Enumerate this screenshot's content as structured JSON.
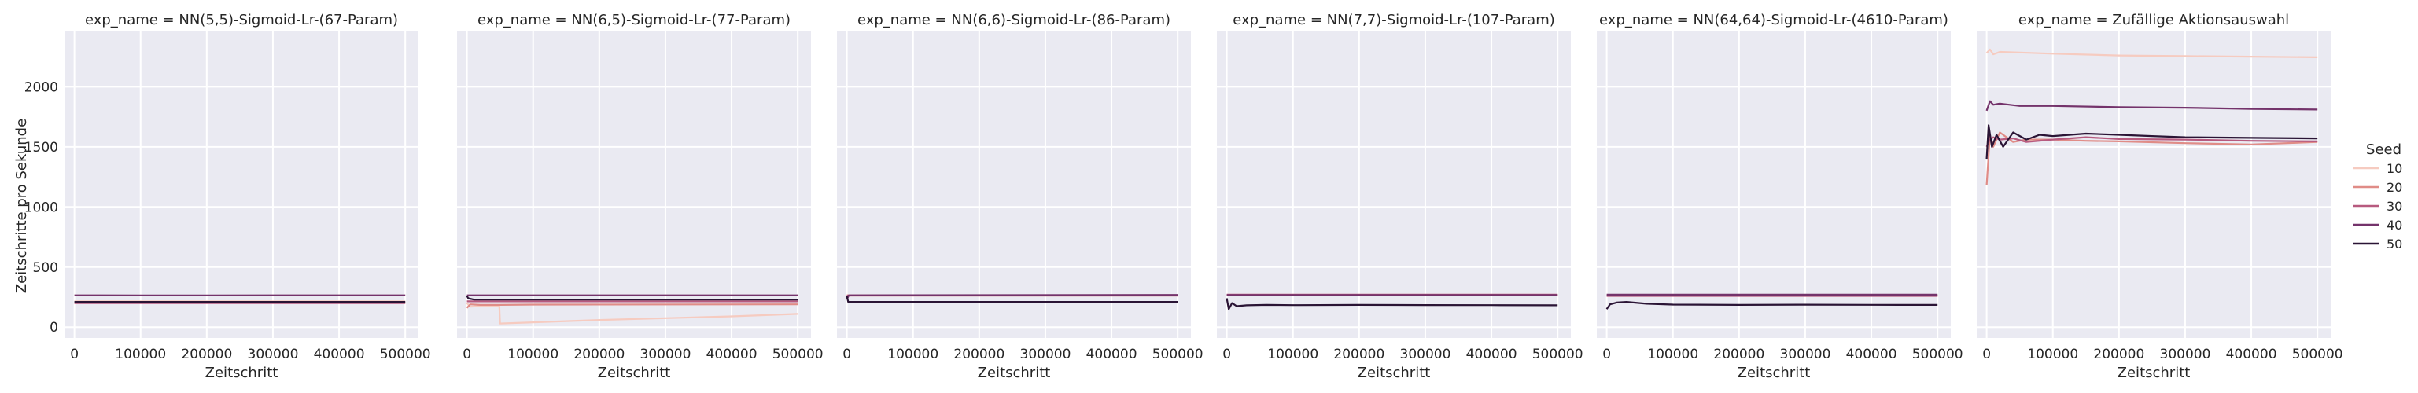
{
  "chart_data": {
    "type": "line",
    "ylabel": "Zeitschritte pro Sekunde",
    "xlabel": "Zeitschritt",
    "xlim": [
      -15000,
      520000
    ],
    "ylim": [
      -90,
      2460
    ],
    "xticks": [
      0,
      100000,
      200000,
      300000,
      400000,
      500000
    ],
    "yticks": [
      0,
      500,
      1000,
      1500,
      2000
    ],
    "grid": true,
    "legend": {
      "title": "Seed",
      "position": "right",
      "entries": [
        {
          "label": "10",
          "color": "#f6cbc0"
        },
        {
          "label": "20",
          "color": "#e08c87"
        },
        {
          "label": "30",
          "color": "#b75a7f"
        },
        {
          "label": "40",
          "color": "#74336b"
        },
        {
          "label": "50",
          "color": "#2a1435"
        }
      ]
    },
    "panels": [
      {
        "title": "exp_name = NN(5,5)-Sigmoid-Lr-(67-Param)",
        "series": [
          {
            "seed": "10",
            "x": [
              0,
              500000
            ],
            "y": [
              215,
              215
            ]
          },
          {
            "seed": "20",
            "x": [
              0,
              500000
            ],
            "y": [
              205,
              205
            ]
          },
          {
            "seed": "30",
            "x": [
              0,
              500000
            ],
            "y": [
              200,
              200
            ]
          },
          {
            "seed": "40",
            "x": [
              0,
              100000,
              200000,
              300000,
              400000,
              500000
            ],
            "y": [
              265,
              264,
              264,
              265,
              265,
              265
            ]
          },
          {
            "seed": "50",
            "x": [
              0,
              500000
            ],
            "y": [
              210,
              210
            ]
          }
        ]
      },
      {
        "title": "exp_name = NN(6,5)-Sigmoid-Lr-(77-Param)",
        "series": [
          {
            "seed": "10",
            "x": [
              0,
              5000,
              20000,
              40000,
              49000,
              50000,
              100000,
              200000,
              300000,
              400000,
              500000
            ],
            "y": [
              200,
              170,
              175,
              178,
              175,
              30,
              40,
              60,
              75,
              90,
              110
            ]
          },
          {
            "seed": "20",
            "x": [
              0,
              5000,
              20000,
              50000,
              100000,
              500000
            ],
            "y": [
              160,
              190,
              185,
              185,
              188,
              190
            ]
          },
          {
            "seed": "30",
            "x": [
              0,
              500000
            ],
            "y": [
              215,
              215
            ]
          },
          {
            "seed": "40",
            "x": [
              0,
              500000
            ],
            "y": [
              265,
              265
            ]
          },
          {
            "seed": "50",
            "x": [
              0,
              2000,
              10000,
              500000
            ],
            "y": [
              260,
              240,
              230,
              230
            ]
          }
        ]
      },
      {
        "title": "exp_name = NN(6,6)-Sigmoid-Lr-(86-Param)",
        "series": [
          {
            "seed": "10",
            "x": [
              0,
              500000
            ],
            "y": [
              262,
              262
            ]
          },
          {
            "seed": "20",
            "x": [
              0,
              500000
            ],
            "y": [
              265,
              265
            ]
          },
          {
            "seed": "30",
            "x": [
              0,
              500000
            ],
            "y": [
              263,
              263
            ]
          },
          {
            "seed": "40",
            "x": [
              0,
              3000,
              500000
            ],
            "y": [
              230,
              265,
              268
            ]
          },
          {
            "seed": "50",
            "x": [
              0,
              2000,
              500000
            ],
            "y": [
              260,
              210,
              210
            ]
          }
        ]
      },
      {
        "title": "exp_name = NN(7,7)-Sigmoid-Lr-(107-Param)",
        "series": [
          {
            "seed": "10",
            "x": [
              0,
              500000
            ],
            "y": [
              268,
              268
            ]
          },
          {
            "seed": "20",
            "x": [
              0,
              500000
            ],
            "y": [
              265,
              265
            ]
          },
          {
            "seed": "30",
            "x": [
              0,
              500000
            ],
            "y": [
              270,
              270
            ]
          },
          {
            "seed": "40",
            "x": [
              0,
              500000
            ],
            "y": [
              267,
              267
            ]
          },
          {
            "seed": "50",
            "x": [
              0,
              3000,
              8000,
              15000,
              30000,
              60000,
              100000,
              200000,
              300000,
              400000,
              500000
            ],
            "y": [
              240,
              150,
              200,
              175,
              182,
              185,
              183,
              185,
              184,
              183,
              182
            ]
          }
        ]
      },
      {
        "title": "exp_name = NN(64,64)-Sigmoid-Lr-(4610-Param)",
        "series": [
          {
            "seed": "10",
            "x": [
              0,
              500000
            ],
            "y": [
              262,
              262
            ]
          },
          {
            "seed": "20",
            "x": [
              0,
              500000
            ],
            "y": [
              265,
              265
            ]
          },
          {
            "seed": "30",
            "x": [
              0,
              500000
            ],
            "y": [
              260,
              260
            ]
          },
          {
            "seed": "40",
            "x": [
              0,
              500000
            ],
            "y": [
              270,
              270
            ]
          },
          {
            "seed": "50",
            "x": [
              0,
              5000,
              15000,
              30000,
              60000,
              100000,
              200000,
              300000,
              400000,
              500000
            ],
            "y": [
              150,
              190,
              205,
              210,
              195,
              188,
              185,
              187,
              186,
              185
            ]
          }
        ]
      },
      {
        "title": "exp_name = Zufällige Aktionsauswahl",
        "series": [
          {
            "seed": "10",
            "x": [
              0,
              5000,
              10000,
              20000,
              50000,
              100000,
              200000,
              300000,
              400000,
              500000
            ],
            "y": [
              2280,
              2310,
              2270,
              2290,
              2285,
              2275,
              2260,
              2255,
              2250,
              2245
            ]
          },
          {
            "seed": "20",
            "x": [
              0,
              5000,
              10000,
              20000,
              40000,
              60000,
              100000,
              150000,
              200000,
              300000,
              400000,
              500000
            ],
            "y": [
              1180,
              1600,
              1500,
              1620,
              1540,
              1560,
              1560,
              1550,
              1545,
              1530,
              1520,
              1540
            ]
          },
          {
            "seed": "30",
            "x": [
              0,
              5000,
              10000,
              20000,
              40000,
              60000,
              100000,
              150000,
              200000,
              300000,
              400000,
              500000
            ],
            "y": [
              1500,
              1560,
              1580,
              1560,
              1570,
              1540,
              1560,
              1580,
              1565,
              1560,
              1550,
              1545
            ]
          },
          {
            "seed": "40",
            "x": [
              0,
              5000,
              10000,
              20000,
              50000,
              100000,
              200000,
              300000,
              400000,
              500000
            ],
            "y": [
              1800,
              1880,
              1850,
              1860,
              1840,
              1840,
              1830,
              1825,
              1815,
              1810
            ]
          },
          {
            "seed": "50",
            "x": [
              0,
              3000,
              8000,
              15000,
              25000,
              40000,
              60000,
              80000,
              100000,
              150000,
              200000,
              250000,
              300000,
              400000,
              500000
            ],
            "y": [
              1400,
              1680,
              1500,
              1600,
              1500,
              1620,
              1560,
              1600,
              1590,
              1610,
              1600,
              1590,
              1580,
              1575,
              1570
            ]
          }
        ]
      }
    ]
  }
}
